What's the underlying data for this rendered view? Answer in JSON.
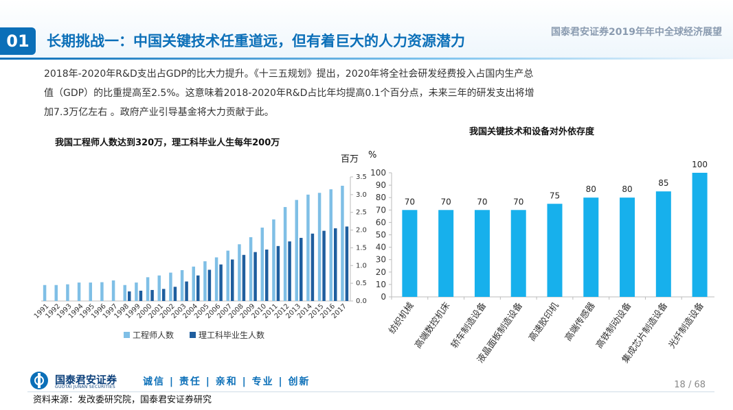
{
  "header": {
    "section_number": "01",
    "title": "长期挑战一：中国关键技术任重道远，但有着巨大的人力资源潜力",
    "report_title": "国泰君安证券2019年年中全球经济展望"
  },
  "intro_lines": [
    "2018年-2020年R&D支出占GDP的比大力提升。《十三五规划》提出，2020年将全社会研发经费投入占国内生产总",
    "值（GDP）的比重提高至2.5%。这意味着2018-2020年R&D占比年均提高0.1个百分点，未来三年的研发支出将增",
    "加7.3万亿左右 。政府产业引导基金将大力贡献于此。"
  ],
  "colors": {
    "brand_blue": "#0b6fb8",
    "engineer_bar": "#7fbfe6",
    "graduate_bar": "#1f5e9e",
    "dependence_bar": "#17b0ec"
  },
  "chart_data": [
    {
      "type": "bar",
      "title": "我国工程师人数达到320万，理工科毕业人生每年200万",
      "unit_label": "百万",
      "categories": [
        "1991",
        "1992",
        "1993",
        "1994",
        "1995",
        "1996",
        "1997",
        "1998",
        "1999",
        "2000",
        "2001",
        "2002",
        "2003",
        "2004",
        "2005",
        "2006",
        "2007",
        "2008",
        "2009",
        "2010",
        "2011",
        "2012",
        "2013",
        "2014",
        "2015",
        "2016",
        "2017"
      ],
      "series": [
        {
          "name": "工程师人数",
          "color": "#7fbfe6",
          "values": [
            0.45,
            0.45,
            0.47,
            0.52,
            0.52,
            0.53,
            0.58,
            0.45,
            0.52,
            0.67,
            0.72,
            0.8,
            0.87,
            0.97,
            1.12,
            1.23,
            1.42,
            1.6,
            1.8,
            2.07,
            2.3,
            2.65,
            2.85,
            3.0,
            3.05,
            3.15,
            3.25
          ]
        },
        {
          "name": "理工科毕业生人数",
          "color": "#1f5e9e",
          "values": [
            null,
            null,
            null,
            null,
            null,
            null,
            null,
            0.27,
            0.29,
            0.31,
            0.34,
            0.4,
            0.55,
            0.72,
            0.88,
            1.03,
            1.17,
            1.3,
            1.38,
            1.45,
            1.55,
            1.68,
            1.78,
            1.9,
            1.98,
            2.05,
            2.1
          ]
        }
      ],
      "y_ticks": [
        "0.0",
        "0.5",
        "1.0",
        "1.5",
        "2.0",
        "2.5",
        "3.0",
        "3.5"
      ],
      "ylim": [
        0,
        3.5
      ],
      "legend_position": "bottom"
    },
    {
      "type": "bar",
      "title": "我国关键技术和设备对外依存度",
      "unit_label": "%",
      "categories": [
        "纺织机械",
        "高端数控机床",
        "轿车制造设备",
        "液晶面板制造设备",
        "高速胶印机",
        "高端传感器",
        "高铁制动设备",
        "集成芯片制造设备",
        "光纤制造设备"
      ],
      "values": [
        70,
        70,
        70,
        70,
        75,
        80,
        80,
        85,
        100
      ],
      "y_ticks": [
        "0",
        "10",
        "20",
        "30",
        "40",
        "50",
        "60",
        "70",
        "80",
        "90",
        "100"
      ],
      "ylim": [
        0,
        100
      ],
      "color": "#17b0ec"
    }
  ],
  "footer": {
    "brand_cn": "国泰君安证券",
    "brand_en": "GUOTAI JUNAN SECURITIES",
    "slogan": "诚信 | 责任 | 亲和 | 专业 | 创新",
    "page": "18 / 68",
    "source": "资料来源：发改委研究院，国泰君安证券研究"
  }
}
